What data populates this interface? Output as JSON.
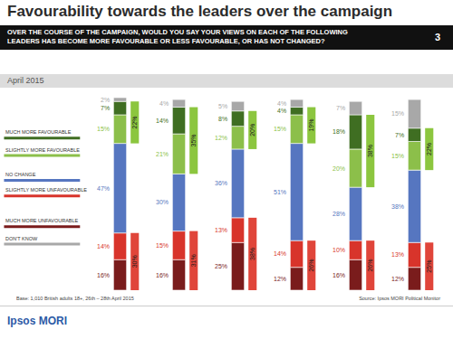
{
  "title": "Favourability towards the leaders over the campaign",
  "subtitle": "OVER THE COURSE OF THE CAMPAIGN, WOULD YOU SAY YOUR VIEWS ON EACH OF THE FOLLOWING LEADERS HAS BECOME MORE FAVOURABLE OR LESS FAVOURABLE, OR HAS NOT CHANGED?",
  "page_number": "3",
  "period": "April 2015",
  "footnote": "Base: 1,010 British adults 18+, 26th – 28th April 2015",
  "source": "Source: Ipsos MORI Political Monitor",
  "logo_text": "Ipsos MORI",
  "chart_data": {
    "type": "bar",
    "stacked": true,
    "data_labels": true,
    "tick_labels": false,
    "categories": [
      null,
      null,
      null,
      null,
      null,
      null
    ],
    "ylim": [
      0,
      101
    ],
    "series": [
      {
        "name": "MUCH MORE FAVOURABLE",
        "color": "#3f6e22",
        "values": [
          7,
          14,
          8,
          4,
          18,
          7
        ],
        "value_labels": [
          "7%",
          "14%",
          "8%",
          "4%",
          "18%",
          "7%"
        ]
      },
      {
        "name": "SLIGHTLY MORE FAVOURABLE",
        "color": "#8cbf4a",
        "values": [
          15,
          21,
          12,
          15,
          20,
          15
        ],
        "value_labels": [
          "15%",
          "21%",
          "12%",
          "15%",
          "20%",
          "15%"
        ]
      },
      {
        "name": "NO CHANGE",
        "color": "#5676c0",
        "values": [
          47,
          30,
          36,
          51,
          28,
          38
        ],
        "value_labels": [
          "47%",
          "30%",
          "36%",
          "51%",
          "28%",
          "38%"
        ]
      },
      {
        "name": "SLIGHTLY MORE UNFAVOURABLE",
        "color": "#d8342b",
        "values": [
          14,
          15,
          13,
          14,
          10,
          13
        ],
        "value_labels": [
          "14%",
          "15%",
          "13%",
          "14%",
          "10%",
          "13%"
        ]
      },
      {
        "name": "MUCH MORE UNFAVOURABLE",
        "color": "#7a1c1c",
        "values": [
          16,
          16,
          25,
          12,
          16,
          12
        ],
        "value_labels": [
          "16%",
          "16%",
          "25%",
          "12%",
          "16%",
          "12%"
        ]
      },
      {
        "name": "DON'T KNOW",
        "color": "#a8a8a8",
        "values": [
          2,
          4,
          5,
          4,
          7,
          15
        ],
        "value_labels": [
          "2%",
          "4%",
          "5%",
          "4%",
          "7%",
          "15%"
        ]
      }
    ],
    "net_series": [
      {
        "color": "#8cc63f",
        "values": [
          22,
          35,
          20,
          19,
          38,
          22
        ],
        "value_labels": [
          "22%",
          "35%",
          "20%",
          "19%",
          "38%",
          "22%"
        ]
      },
      {
        "color": "#e0453a",
        "values": [
          30,
          31,
          38,
          26,
          26,
          25
        ],
        "value_labels": [
          "30%",
          "31%",
          "38%",
          "26%",
          "26%",
          "25%"
        ]
      }
    ]
  }
}
